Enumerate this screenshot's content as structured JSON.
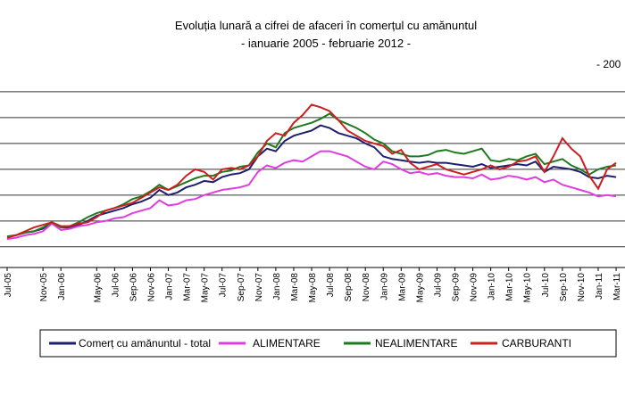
{
  "chart_data": {
    "type": "line",
    "title": "Evoluția lunară a cifrei de afaceri în  comerțul cu amănuntul",
    "subtitle": "- ianuarie 2005 -  februarie 2012  -",
    "annotation": "- 200",
    "categories": [
      "Jul-05",
      null,
      null,
      null,
      "Nov-05",
      null,
      "Jan-06",
      null,
      null,
      null,
      "May-06",
      null,
      "Jul-06",
      null,
      "Sep-06",
      null,
      "Nov-06",
      null,
      "Jan-07",
      null,
      "Mar-07",
      null,
      "May-07",
      null,
      "Jul-07",
      null,
      "Sep-07",
      null,
      "Nov-07",
      null,
      "Jan-08",
      null,
      "Mar-08",
      null,
      "May-08",
      null,
      "Jul-08",
      null,
      "Sep-08",
      null,
      "Nov-08",
      null,
      "Jan-09",
      null,
      "Mar-09",
      null,
      "May-09",
      null,
      "Jul-09",
      null,
      "Sep-09",
      null,
      "Nov-09",
      null,
      "Jan-10",
      null,
      "Mar-10",
      null,
      "May-10",
      null,
      "Jul-10",
      null,
      "Sep-10",
      null,
      "Nov-10",
      null,
      "Jan-11",
      null,
      "Mar-11"
    ],
    "series": [
      {
        "name": "Comerț cu amănuntul - total",
        "color": "#1f1f6e",
        "values": [
          88,
          89,
          91,
          92,
          94,
          99,
          95,
          95,
          97,
          100,
          104,
          106,
          108,
          110,
          113,
          115,
          118,
          124,
          120,
          122,
          126,
          128,
          131,
          130,
          134,
          136,
          137,
          140,
          150,
          156,
          154,
          162,
          166,
          168,
          170,
          174,
          172,
          168,
          166,
          164,
          160,
          157,
          150,
          148,
          147,
          146,
          145,
          146,
          145,
          145,
          144,
          143,
          142,
          144,
          141,
          142,
          143,
          144,
          143,
          146,
          138,
          142,
          141,
          140,
          138,
          134,
          133,
          135,
          134
        ]
      },
      {
        "name": "ALIMENTARE",
        "color": "#e03ce0",
        "values": [
          86,
          87,
          89,
          90,
          92,
          98,
          93,
          94,
          96,
          97,
          99,
          100,
          102,
          103,
          106,
          108,
          110,
          116,
          112,
          113,
          116,
          117,
          120,
          122,
          124,
          125,
          126,
          128,
          138,
          143,
          141,
          145,
          147,
          146,
          150,
          154,
          154,
          152,
          150,
          146,
          142,
          140,
          146,
          144,
          140,
          137,
          138,
          136,
          137,
          135,
          134,
          134,
          133,
          136,
          132,
          133,
          135,
          134,
          132,
          134,
          130,
          132,
          128,
          126,
          124,
          122,
          119,
          120,
          119
        ]
      },
      {
        "name": "NEALIMENTARE",
        "color": "#1e7a1e",
        "values": [
          88,
          89,
          91,
          92,
          95,
          99,
          95,
          96,
          99,
          103,
          106,
          108,
          110,
          113,
          117,
          119,
          123,
          128,
          124,
          127,
          130,
          133,
          135,
          135,
          138,
          139,
          142,
          143,
          153,
          160,
          157,
          168,
          172,
          174,
          176,
          179,
          183,
          178,
          175,
          172,
          168,
          163,
          160,
          154,
          152,
          150,
          150,
          151,
          154,
          155,
          153,
          152,
          154,
          156,
          147,
          146,
          148,
          147,
          150,
          152,
          144,
          146,
          148,
          143,
          140,
          136,
          140,
          142,
          143
        ]
      },
      {
        "name": "CARBURANTI",
        "color": "#cc1f1f",
        "values": [
          87,
          89,
          92,
          95,
          97,
          99,
          96,
          96,
          98,
          99,
          103,
          108,
          110,
          112,
          114,
          118,
          122,
          126,
          124,
          128,
          135,
          140,
          138,
          132,
          140,
          141,
          140,
          143,
          150,
          162,
          168,
          166,
          176,
          182,
          190,
          188,
          185,
          178,
          170,
          166,
          162,
          160,
          158,
          152,
          155,
          145,
          140,
          142,
          144,
          140,
          138,
          136,
          138,
          140,
          143,
          140,
          142,
          146,
          147,
          150,
          138,
          150,
          164,
          156,
          150,
          135,
          125,
          140,
          145
        ]
      }
    ],
    "ylim": [
      64,
      202
    ],
    "yticks": [
      80,
      100,
      120,
      140,
      160,
      180,
      200
    ],
    "grid": true
  }
}
